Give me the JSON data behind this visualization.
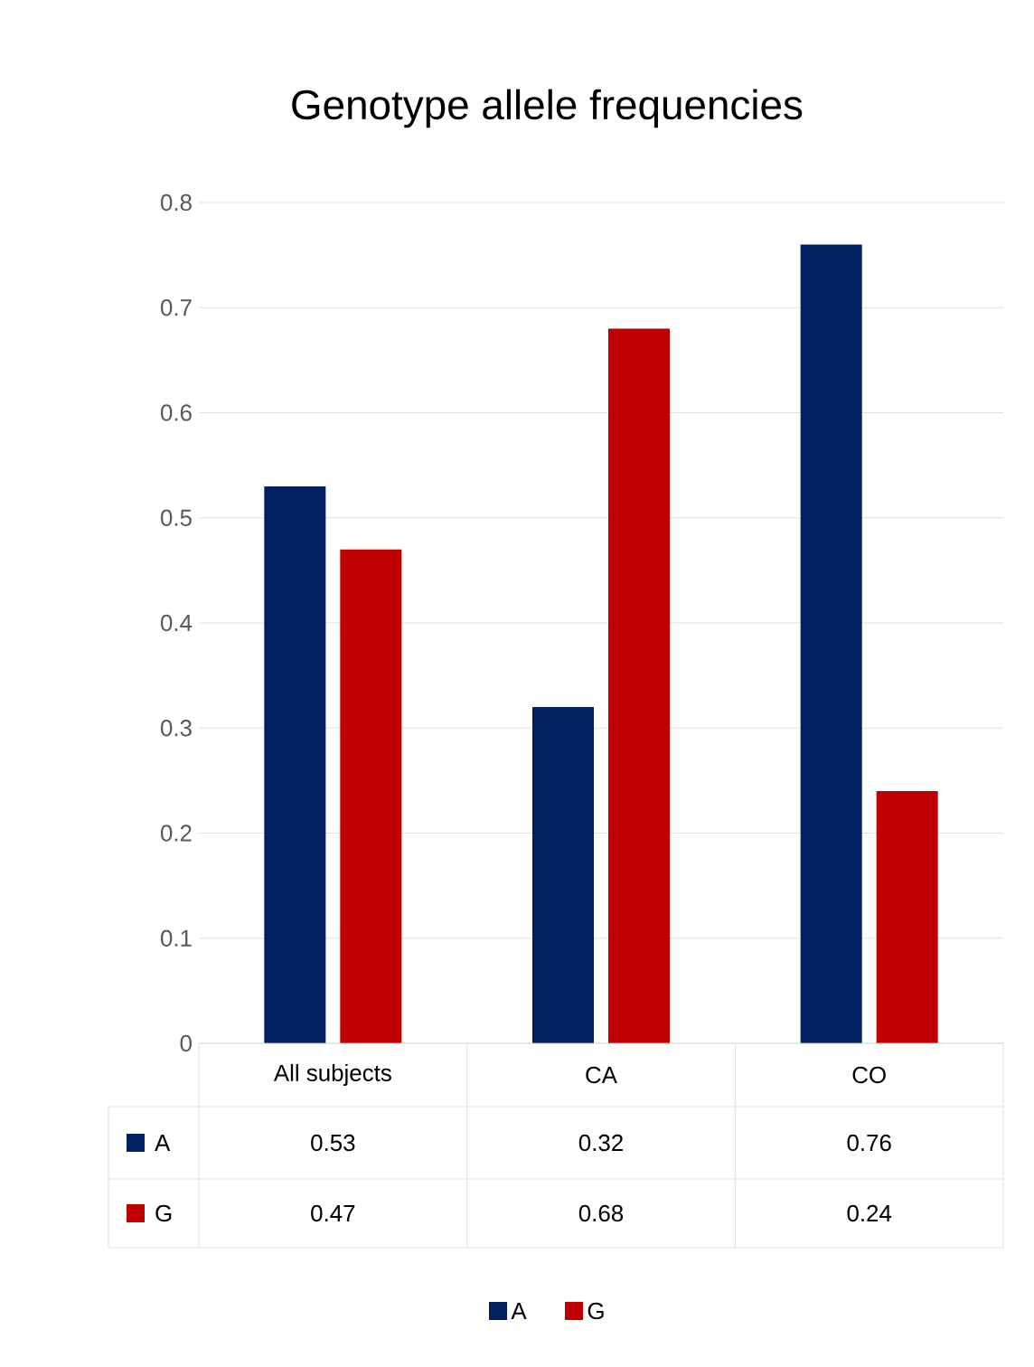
{
  "chart_data": {
    "type": "bar",
    "title": "Genotype allele frequencies",
    "categories": [
      "All subjects",
      "CA",
      "CO"
    ],
    "series": [
      {
        "name": "A",
        "color": "#002060",
        "values": [
          0.53,
          0.32,
          0.76
        ]
      },
      {
        "name": "G",
        "color": "#c00000",
        "values": [
          0.47,
          0.68,
          0.24
        ]
      }
    ],
    "ylim": [
      0,
      0.8
    ],
    "yticks": [
      0,
      0.1,
      0.2,
      0.3,
      0.4,
      0.5,
      0.6,
      0.7,
      0.8
    ],
    "grid": "y",
    "legend": "bottom",
    "data_labels": true
  }
}
